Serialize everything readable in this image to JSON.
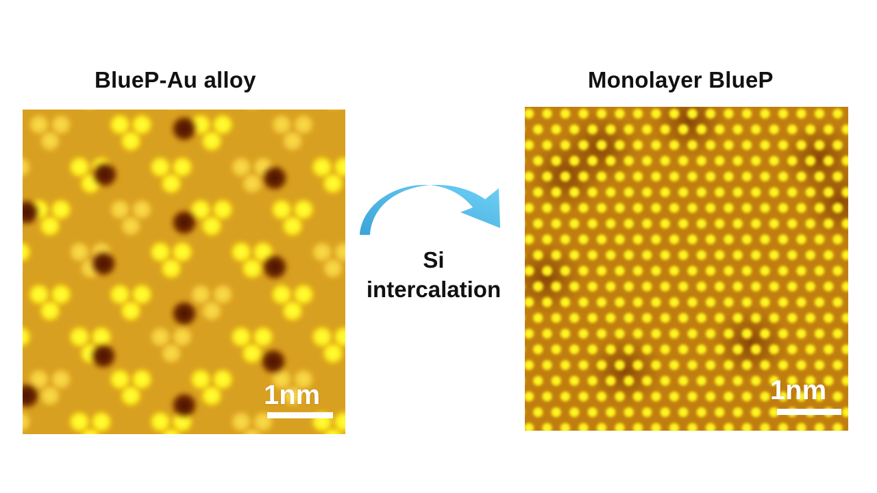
{
  "left": {
    "title": "BlueP-Au alloy",
    "scale_label": "1nm"
  },
  "right": {
    "title": "Monolayer BlueP",
    "scale_label": "1nm"
  },
  "process": {
    "line1": "Si",
    "line2": "intercalation"
  },
  "colors": {
    "stm_background": "#c98a10",
    "stm_bright": "#ffee22",
    "stm_dark": "#5a1a05",
    "arrow": "#5bbfe8"
  }
}
